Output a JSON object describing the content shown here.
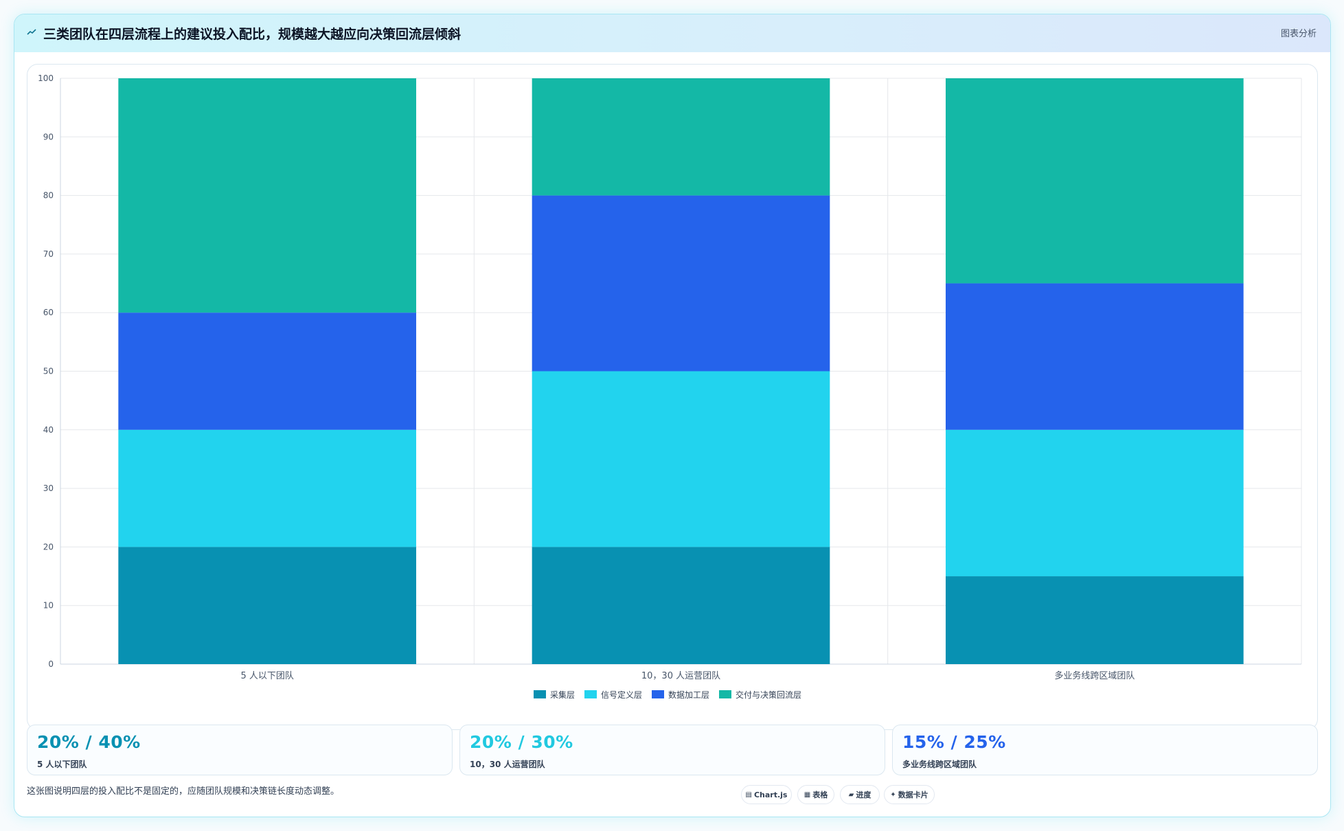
{
  "header": {
    "title_icon": "chart-line-icon",
    "title": "三类团队在四层流程上的建议投入配比，规模越大越应向决策回流层倾斜",
    "action_label": "图表分析"
  },
  "chart_data": {
    "type": "bar",
    "stacked": true,
    "categories": [
      "5 人以下团队",
      "10，30 人运营团队",
      "多业务线跨区域团队"
    ],
    "series": [
      {
        "name": "采集层",
        "color": "#0891b2",
        "values": [
          20,
          20,
          15
        ]
      },
      {
        "name": "信号定义层",
        "color": "#22d3ee",
        "values": [
          20,
          30,
          25
        ]
      },
      {
        "name": "数据加工层",
        "color": "#2563eb",
        "values": [
          20,
          30,
          25
        ]
      },
      {
        "name": "交付与决策回流层",
        "color": "#14b8a6",
        "values": [
          40,
          20,
          35
        ]
      }
    ],
    "ylim": [
      0,
      100
    ],
    "yticks": [
      "0",
      "10",
      "20",
      "30",
      "40",
      "50",
      "60",
      "70",
      "80",
      "90",
      "100"
    ],
    "grid": true,
    "legend_position": "bottom"
  },
  "stats": [
    {
      "value": "20% / 40%",
      "label": "5 人以下团队",
      "color": "#0891b2"
    },
    {
      "value": "20% / 30%",
      "label": "10，30 人运营团队",
      "color": "#22c9e0"
    },
    {
      "value": "15% / 25%",
      "label": "多业务线跨区域团队",
      "color": "#2563eb"
    }
  ],
  "footer": {
    "note": "这张图说明四层的投入配比不是固定的，应随团队规模和决策链长度动态调整。",
    "chips": [
      {
        "icon": "▤",
        "label": "Chart.js"
      },
      {
        "icon": "▦",
        "label": "表格"
      },
      {
        "icon": "▰",
        "label": "进度"
      },
      {
        "icon": "✦",
        "label": "数据卡片"
      }
    ]
  }
}
